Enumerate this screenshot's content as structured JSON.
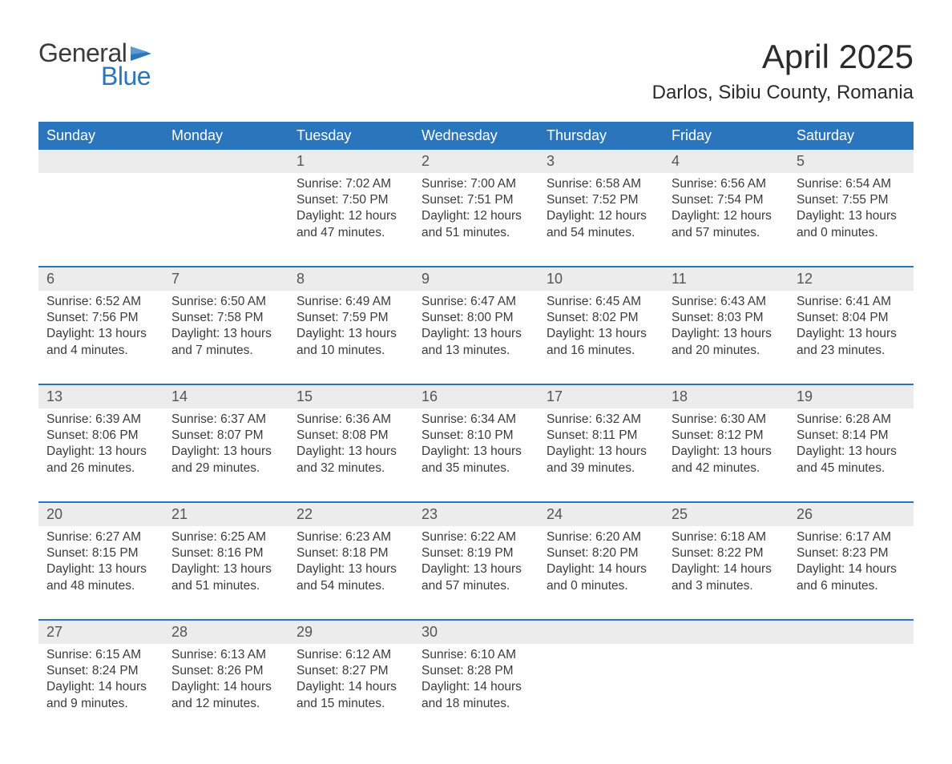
{
  "logo": {
    "general": "General",
    "blue": "Blue"
  },
  "title": "April 2025",
  "location": "Darlos, Sibiu County, Romania",
  "colors": {
    "brand_blue": "#2a75bb",
    "header_bg": "#2a75bb",
    "header_text": "#ffffff",
    "daynum_bg": "#ececec",
    "text": "#3b3b3b",
    "page_bg": "#ffffff",
    "rule": "#2a75bb"
  },
  "weekdays": [
    "Sunday",
    "Monday",
    "Tuesday",
    "Wednesday",
    "Thursday",
    "Friday",
    "Saturday"
  ],
  "weeks": [
    {
      "nums": [
        "",
        "",
        "1",
        "2",
        "3",
        "4",
        "5"
      ],
      "cells": [
        {},
        {},
        {
          "sunrise": "Sunrise: 7:02 AM",
          "sunset": "Sunset: 7:50 PM",
          "day1": "Daylight: 12 hours",
          "day2": "and 47 minutes."
        },
        {
          "sunrise": "Sunrise: 7:00 AM",
          "sunset": "Sunset: 7:51 PM",
          "day1": "Daylight: 12 hours",
          "day2": "and 51 minutes."
        },
        {
          "sunrise": "Sunrise: 6:58 AM",
          "sunset": "Sunset: 7:52 PM",
          "day1": "Daylight: 12 hours",
          "day2": "and 54 minutes."
        },
        {
          "sunrise": "Sunrise: 6:56 AM",
          "sunset": "Sunset: 7:54 PM",
          "day1": "Daylight: 12 hours",
          "day2": "and 57 minutes."
        },
        {
          "sunrise": "Sunrise: 6:54 AM",
          "sunset": "Sunset: 7:55 PM",
          "day1": "Daylight: 13 hours",
          "day2": "and 0 minutes."
        }
      ]
    },
    {
      "nums": [
        "6",
        "7",
        "8",
        "9",
        "10",
        "11",
        "12"
      ],
      "cells": [
        {
          "sunrise": "Sunrise: 6:52 AM",
          "sunset": "Sunset: 7:56 PM",
          "day1": "Daylight: 13 hours",
          "day2": "and 4 minutes."
        },
        {
          "sunrise": "Sunrise: 6:50 AM",
          "sunset": "Sunset: 7:58 PM",
          "day1": "Daylight: 13 hours",
          "day2": "and 7 minutes."
        },
        {
          "sunrise": "Sunrise: 6:49 AM",
          "sunset": "Sunset: 7:59 PM",
          "day1": "Daylight: 13 hours",
          "day2": "and 10 minutes."
        },
        {
          "sunrise": "Sunrise: 6:47 AM",
          "sunset": "Sunset: 8:00 PM",
          "day1": "Daylight: 13 hours",
          "day2": "and 13 minutes."
        },
        {
          "sunrise": "Sunrise: 6:45 AM",
          "sunset": "Sunset: 8:02 PM",
          "day1": "Daylight: 13 hours",
          "day2": "and 16 minutes."
        },
        {
          "sunrise": "Sunrise: 6:43 AM",
          "sunset": "Sunset: 8:03 PM",
          "day1": "Daylight: 13 hours",
          "day2": "and 20 minutes."
        },
        {
          "sunrise": "Sunrise: 6:41 AM",
          "sunset": "Sunset: 8:04 PM",
          "day1": "Daylight: 13 hours",
          "day2": "and 23 minutes."
        }
      ]
    },
    {
      "nums": [
        "13",
        "14",
        "15",
        "16",
        "17",
        "18",
        "19"
      ],
      "cells": [
        {
          "sunrise": "Sunrise: 6:39 AM",
          "sunset": "Sunset: 8:06 PM",
          "day1": "Daylight: 13 hours",
          "day2": "and 26 minutes."
        },
        {
          "sunrise": "Sunrise: 6:37 AM",
          "sunset": "Sunset: 8:07 PM",
          "day1": "Daylight: 13 hours",
          "day2": "and 29 minutes."
        },
        {
          "sunrise": "Sunrise: 6:36 AM",
          "sunset": "Sunset: 8:08 PM",
          "day1": "Daylight: 13 hours",
          "day2": "and 32 minutes."
        },
        {
          "sunrise": "Sunrise: 6:34 AM",
          "sunset": "Sunset: 8:10 PM",
          "day1": "Daylight: 13 hours",
          "day2": "and 35 minutes."
        },
        {
          "sunrise": "Sunrise: 6:32 AM",
          "sunset": "Sunset: 8:11 PM",
          "day1": "Daylight: 13 hours",
          "day2": "and 39 minutes."
        },
        {
          "sunrise": "Sunrise: 6:30 AM",
          "sunset": "Sunset: 8:12 PM",
          "day1": "Daylight: 13 hours",
          "day2": "and 42 minutes."
        },
        {
          "sunrise": "Sunrise: 6:28 AM",
          "sunset": "Sunset: 8:14 PM",
          "day1": "Daylight: 13 hours",
          "day2": "and 45 minutes."
        }
      ]
    },
    {
      "nums": [
        "20",
        "21",
        "22",
        "23",
        "24",
        "25",
        "26"
      ],
      "cells": [
        {
          "sunrise": "Sunrise: 6:27 AM",
          "sunset": "Sunset: 8:15 PM",
          "day1": "Daylight: 13 hours",
          "day2": "and 48 minutes."
        },
        {
          "sunrise": "Sunrise: 6:25 AM",
          "sunset": "Sunset: 8:16 PM",
          "day1": "Daylight: 13 hours",
          "day2": "and 51 minutes."
        },
        {
          "sunrise": "Sunrise: 6:23 AM",
          "sunset": "Sunset: 8:18 PM",
          "day1": "Daylight: 13 hours",
          "day2": "and 54 minutes."
        },
        {
          "sunrise": "Sunrise: 6:22 AM",
          "sunset": "Sunset: 8:19 PM",
          "day1": "Daylight: 13 hours",
          "day2": "and 57 minutes."
        },
        {
          "sunrise": "Sunrise: 6:20 AM",
          "sunset": "Sunset: 8:20 PM",
          "day1": "Daylight: 14 hours",
          "day2": "and 0 minutes."
        },
        {
          "sunrise": "Sunrise: 6:18 AM",
          "sunset": "Sunset: 8:22 PM",
          "day1": "Daylight: 14 hours",
          "day2": "and 3 minutes."
        },
        {
          "sunrise": "Sunrise: 6:17 AM",
          "sunset": "Sunset: 8:23 PM",
          "day1": "Daylight: 14 hours",
          "day2": "and 6 minutes."
        }
      ]
    },
    {
      "nums": [
        "27",
        "28",
        "29",
        "30",
        "",
        "",
        ""
      ],
      "cells": [
        {
          "sunrise": "Sunrise: 6:15 AM",
          "sunset": "Sunset: 8:24 PM",
          "day1": "Daylight: 14 hours",
          "day2": "and 9 minutes."
        },
        {
          "sunrise": "Sunrise: 6:13 AM",
          "sunset": "Sunset: 8:26 PM",
          "day1": "Daylight: 14 hours",
          "day2": "and 12 minutes."
        },
        {
          "sunrise": "Sunrise: 6:12 AM",
          "sunset": "Sunset: 8:27 PM",
          "day1": "Daylight: 14 hours",
          "day2": "and 15 minutes."
        },
        {
          "sunrise": "Sunrise: 6:10 AM",
          "sunset": "Sunset: 8:28 PM",
          "day1": "Daylight: 14 hours",
          "day2": "and 18 minutes."
        },
        {},
        {},
        {}
      ]
    }
  ]
}
